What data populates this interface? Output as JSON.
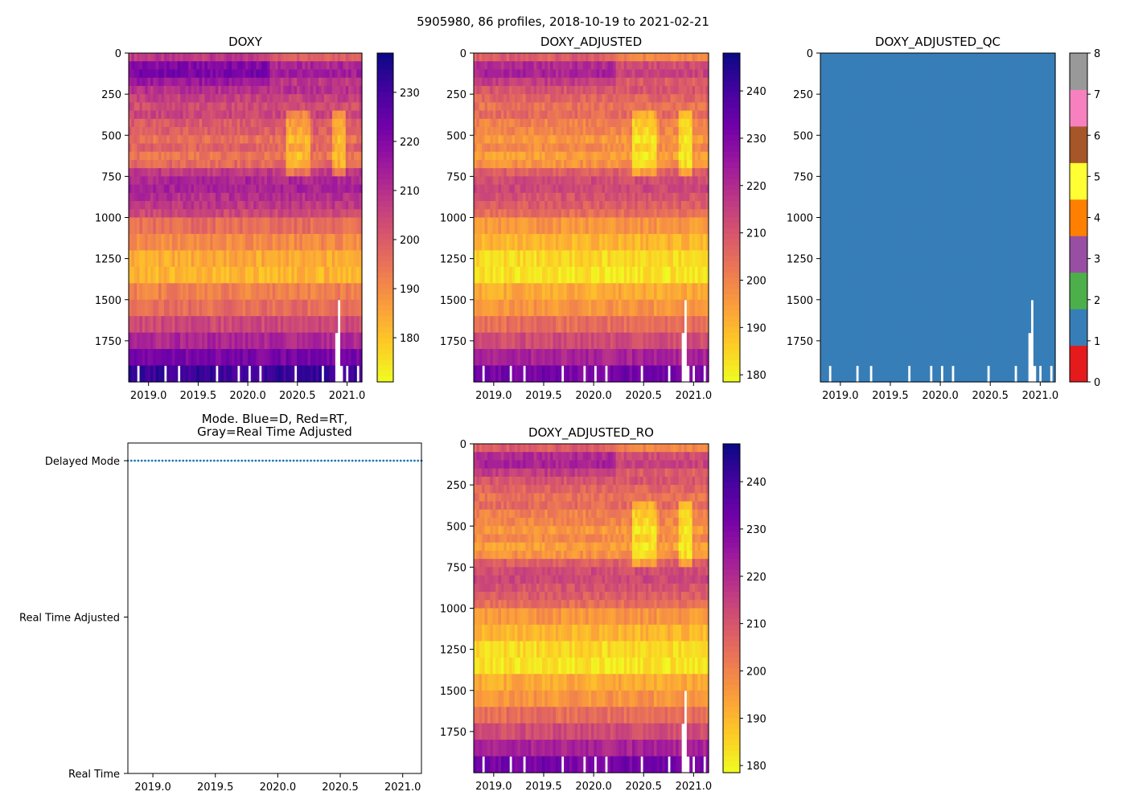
{
  "figure": {
    "suptitle": "5905980, 86 profiles, 2018-10-19 to 2021-02-21"
  },
  "colors": {
    "plasma_stops": [
      "#0d0887",
      "#46039f",
      "#7201a8",
      "#9c179e",
      "#bd3786",
      "#d8576b",
      "#ed7953",
      "#fb9f3a",
      "#fdca26",
      "#f0f921"
    ],
    "qc_colors": [
      "#e41a1c",
      "#377eb8",
      "#4daf4a",
      "#984ea3",
      "#ff7f00",
      "#ffff33",
      "#a65628",
      "#f781bf",
      "#999999"
    ],
    "mode_dots": "#1f77b4"
  },
  "chart_data": [
    {
      "id": "doxy",
      "type": "heatmap",
      "title": "DOXY",
      "x_range": [
        2018.8,
        2021.15
      ],
      "x_ticks": [
        2019.0,
        2019.5,
        2020.0,
        2020.5,
        2021.0
      ],
      "x_tick_labels": [
        "2019.0",
        "2019.5",
        "2020.0",
        "2020.5",
        "2021.0"
      ],
      "y_range": [
        0,
        2000
      ],
      "y_inverted": true,
      "y_ticks": [
        0,
        250,
        500,
        750,
        1000,
        1250,
        1500,
        1750
      ],
      "y_tick_labels": [
        "0",
        "250",
        "500",
        "750",
        "1000",
        "1250",
        "1500",
        "1750"
      ],
      "clim": [
        171,
        238
      ],
      "colorbar_ticks": [
        180,
        190,
        200,
        210,
        220,
        230
      ],
      "colorbar_labels": [
        "180",
        "190",
        "200",
        "210",
        "220",
        "230"
      ]
    },
    {
      "id": "doxy_adj",
      "type": "heatmap",
      "title": "DOXY_ADJUSTED",
      "x_range": [
        2018.8,
        2021.15
      ],
      "x_ticks": [
        2019.0,
        2019.5,
        2020.0,
        2020.5,
        2021.0
      ],
      "x_tick_labels": [
        "2019.0",
        "2019.5",
        "2020.0",
        "2020.5",
        "2021.0"
      ],
      "y_range": [
        0,
        2000
      ],
      "y_inverted": true,
      "y_ticks": [
        0,
        250,
        500,
        750,
        1000,
        1250,
        1500,
        1750
      ],
      "y_tick_labels": [
        "0",
        "250",
        "500",
        "750",
        "1000",
        "1250",
        "1500",
        "1750"
      ],
      "clim": [
        178.5,
        248
      ],
      "colorbar_ticks": [
        180,
        190,
        200,
        210,
        220,
        230,
        240
      ],
      "colorbar_labels": [
        "180",
        "190",
        "200",
        "210",
        "220",
        "230",
        "240"
      ]
    },
    {
      "id": "doxy_qc",
      "type": "heatmap",
      "title": "DOXY_ADJUSTED_QC",
      "x_range": [
        2018.8,
        2021.15
      ],
      "x_ticks": [
        2019.0,
        2019.5,
        2020.0,
        2020.5,
        2021.0
      ],
      "x_tick_labels": [
        "2019.0",
        "2019.5",
        "2020.0",
        "2020.5",
        "2021.0"
      ],
      "y_range": [
        0,
        2000
      ],
      "y_inverted": true,
      "y_ticks": [
        0,
        250,
        500,
        750,
        1000,
        1250,
        1500,
        1750
      ],
      "y_tick_labels": [
        "0",
        "250",
        "500",
        "750",
        "1000",
        "1250",
        "1500",
        "1750"
      ],
      "qc_value": 1,
      "clim": [
        0,
        8
      ],
      "colorbar_ticks": [
        0,
        1,
        2,
        3,
        4,
        5,
        6,
        7,
        8
      ],
      "colorbar_labels": [
        "0",
        "1",
        "2",
        "3",
        "4",
        "5",
        "6",
        "7",
        "8"
      ]
    },
    {
      "id": "mode",
      "type": "scatter",
      "title_line1": "Mode. Blue=D, Red=RT,",
      "title_line2": "Gray=Real Time Adjusted",
      "x_range": [
        2018.8,
        2021.15
      ],
      "x_ticks": [
        2019.0,
        2019.5,
        2020.0,
        2020.5,
        2021.0
      ],
      "x_tick_labels": [
        "2019.0",
        "2019.5",
        "2020.0",
        "2020.5",
        "2021.0"
      ],
      "y_categories": [
        "Delayed Mode",
        "Real Time Adjusted",
        "Real Time"
      ],
      "points_category": "Delayed Mode",
      "n_points": 86
    },
    {
      "id": "doxy_ro",
      "type": "heatmap",
      "title": "DOXY_ADJUSTED_RO",
      "x_range": [
        2018.8,
        2021.15
      ],
      "x_ticks": [
        2019.0,
        2019.5,
        2020.0,
        2020.5,
        2021.0
      ],
      "x_tick_labels": [
        "2019.0",
        "2019.5",
        "2020.0",
        "2020.5",
        "2021.0"
      ],
      "y_range": [
        0,
        2000
      ],
      "y_inverted": true,
      "y_ticks": [
        0,
        250,
        500,
        750,
        1000,
        1250,
        1500,
        1750
      ],
      "y_tick_labels": [
        "0",
        "250",
        "500",
        "750",
        "1000",
        "1250",
        "1500",
        "1750"
      ],
      "clim": [
        178.5,
        248
      ],
      "colorbar_ticks": [
        180,
        190,
        200,
        210,
        220,
        230,
        240
      ],
      "colorbar_labels": [
        "180",
        "190",
        "200",
        "210",
        "220",
        "230",
        "240"
      ]
    }
  ],
  "profile_field": {
    "n_profiles": 86,
    "x_start": 2018.8,
    "x_end": 2021.15,
    "depth_levels": [
      0,
      50,
      100,
      150,
      200,
      250,
      300,
      350,
      400,
      450,
      500,
      550,
      600,
      650,
      700,
      750,
      800,
      850,
      900,
      950,
      1000,
      1100,
      1200,
      1300,
      1400,
      1500,
      1600,
      1700,
      1800,
      1900
    ],
    "base_doxy": [
      208,
      220,
      222,
      216,
      210,
      206,
      203,
      205,
      200,
      199,
      195,
      198,
      194,
      197,
      208,
      212,
      213,
      210,
      208,
      204,
      196,
      190,
      184,
      182,
      192,
      196,
      204,
      212,
      222,
      232
    ],
    "gap_profiles_bottom": [
      3,
      13,
      18,
      32,
      40,
      44,
      48,
      61,
      71,
      78,
      80,
      84
    ],
    "gap_profiles_deep": [
      {
        "profile": 76,
        "from": 1700
      },
      {
        "profile": 77,
        "from": 1500
      }
    ]
  }
}
